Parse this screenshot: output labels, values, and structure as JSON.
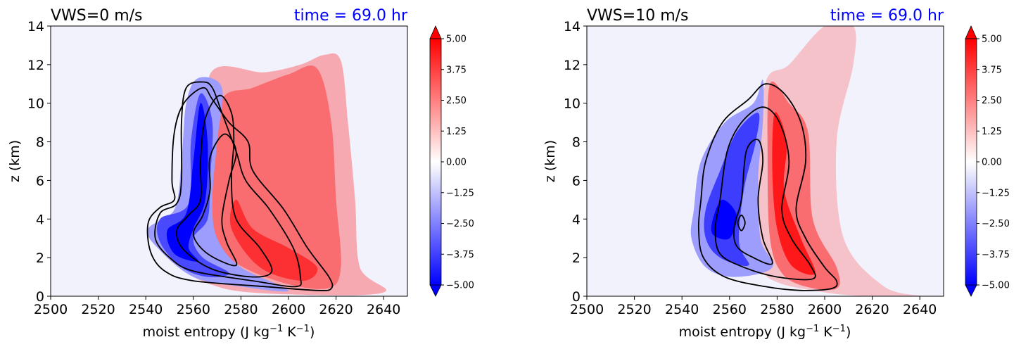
{
  "colors": {
    "background_field": "#f2f2fc",
    "positive": "#ff0000",
    "negative": "#0000ff",
    "contour": "#000000",
    "time_text": "#0000ff"
  },
  "chart_data": [
    {
      "type": "heatmap",
      "title_left": "VWS=0 m/s",
      "title_right": "time = 69.0 hr",
      "xlabel": "moist entropy (J kg",
      "xlabel_exp1": "−1",
      "xlabel_mid": " K",
      "xlabel_exp2": "−1",
      "xlabel_end": ")",
      "ylabel": "z (km)",
      "xlim": [
        2500,
        2650
      ],
      "ylim": [
        0,
        14
      ],
      "xticks": [
        "2500",
        "2520",
        "2540",
        "2560",
        "2580",
        "2600",
        "2620",
        "2640"
      ],
      "yticks": [
        "0",
        "2",
        "4",
        "6",
        "8",
        "10",
        "12",
        "14"
      ],
      "colorbar": {
        "min": -5.0,
        "max": 5.0,
        "extend": "both",
        "ticks": [
          "5.00",
          "3.75",
          "2.50",
          "1.25",
          "0.00",
          "−1.25",
          "−2.50",
          "−3.75",
          "−5.00"
        ]
      },
      "blobs": [
        {
          "sign": "pos",
          "level": 0.3,
          "points": [
            [
              2567,
              11.5
            ],
            [
              2590,
              11.6
            ],
            [
              2605,
              12.0
            ],
            [
              2615,
              12.5
            ],
            [
              2622,
              12.2
            ],
            [
              2625,
              9
            ],
            [
              2628,
              5
            ],
            [
              2630,
              1.5
            ],
            [
              2640,
              0.2
            ],
            [
              2600,
              0.1
            ],
            [
              2570,
              0.5
            ],
            [
              2555,
              2
            ],
            [
              2568,
              6
            ]
          ]
        },
        {
          "sign": "pos",
          "level": 0.55,
          "points": [
            [
              2572,
              10.2
            ],
            [
              2585,
              10.8
            ],
            [
              2600,
              11.5
            ],
            [
              2612,
              11.8
            ],
            [
              2618,
              9
            ],
            [
              2620,
              5
            ],
            [
              2622,
              1.5
            ],
            [
              2616,
              0.4
            ],
            [
              2595,
              0.8
            ],
            [
              2575,
              2
            ],
            [
              2566,
              4
            ],
            [
              2568,
              7
            ]
          ]
        },
        {
          "sign": "pos",
          "level": 0.8,
          "points": [
            [
              2576,
              3.5
            ],
            [
              2588,
              1.5
            ],
            [
              2606,
              0.8
            ],
            [
              2612,
              1.5
            ],
            [
              2600,
              2.5
            ],
            [
              2585,
              3.5
            ],
            [
              2578,
              5
            ]
          ]
        },
        {
          "sign": "neg",
          "level": 0.35,
          "points": [
            [
              2562,
              11.3
            ],
            [
              2572,
              10.8
            ],
            [
              2570,
              8
            ],
            [
              2568,
              5
            ],
            [
              2570,
              3
            ],
            [
              2580,
              1.5
            ],
            [
              2600,
              0.3
            ],
            [
              2580,
              0.5
            ],
            [
              2560,
              1.0
            ],
            [
              2545,
              2.5
            ],
            [
              2541,
              3.5
            ],
            [
              2552,
              4.5
            ],
            [
              2555,
              7
            ],
            [
              2557,
              10
            ]
          ]
        },
        {
          "sign": "neg",
          "level": 0.7,
          "points": [
            [
              2563,
              10.5
            ],
            [
              2568,
              9
            ],
            [
              2567,
              6
            ],
            [
              2566,
              4
            ],
            [
              2560,
              3
            ],
            [
              2564,
              2
            ],
            [
              2575,
              1.2
            ],
            [
              2566,
              1.0
            ],
            [
              2555,
              1.5
            ],
            [
              2546,
              2.8
            ],
            [
              2546,
              4
            ],
            [
              2558,
              4.8
            ],
            [
              2559,
              8
            ]
          ]
        },
        {
          "sign": "neg",
          "level": 1.0,
          "points": [
            [
              2563,
              10.0
            ],
            [
              2566,
              8
            ],
            [
              2565,
              5
            ],
            [
              2560,
              3.5
            ],
            [
              2558,
              2.5
            ],
            [
              2562,
              1.8
            ],
            [
              2552,
              2.2
            ],
            [
              2549,
              3.4
            ],
            [
              2557,
              4.3
            ],
            [
              2560,
              7
            ]
          ]
        }
      ],
      "contours": [
        [
          [
            2564,
            10.8
          ],
          [
            2556,
            10.0
          ],
          [
            2552,
            8.5
          ],
          [
            2551,
            6.0
          ],
          [
            2552,
            5.0
          ],
          [
            2546,
            4.6
          ],
          [
            2541,
            3.8
          ],
          [
            2542,
            2.3
          ],
          [
            2548,
            1.3
          ],
          [
            2560,
            0.8
          ],
          [
            2590,
            0.5
          ],
          [
            2612,
            0.3
          ],
          [
            2618,
            0.4
          ],
          [
            2617,
            1.0
          ],
          [
            2608,
            2.5
          ],
          [
            2598,
            4.5
          ],
          [
            2585,
            6.5
          ],
          [
            2583,
            8.0
          ],
          [
            2575,
            9.0
          ],
          [
            2568,
            10.2
          ]
        ],
        [
          [
            2564,
            11.1
          ],
          [
            2557,
            10.8
          ],
          [
            2555,
            9.0
          ],
          [
            2555,
            6.0
          ],
          [
            2553,
            4.8
          ],
          [
            2546,
            4.3
          ],
          [
            2544,
            3.0
          ],
          [
            2550,
            2.0
          ],
          [
            2560,
            1.3
          ],
          [
            2585,
            0.8
          ],
          [
            2603,
            0.5
          ],
          [
            2605,
            1.0
          ],
          [
            2602,
            2.5
          ],
          [
            2592,
            4.5
          ],
          [
            2582,
            6.0
          ],
          [
            2578,
            7.5
          ],
          [
            2572,
            9.5
          ],
          [
            2568,
            10.8
          ]
        ],
        [
          [
            2571,
            10.4
          ],
          [
            2565,
            9.2
          ],
          [
            2563,
            7.0
          ],
          [
            2563,
            5.0
          ],
          [
            2558,
            4.2
          ],
          [
            2553,
            3.4
          ],
          [
            2556,
            2.4
          ],
          [
            2568,
            1.4
          ],
          [
            2585,
            1.0
          ],
          [
            2593,
            1.3
          ],
          [
            2588,
            2.5
          ],
          [
            2578,
            4.0
          ],
          [
            2576,
            6.0
          ],
          [
            2577,
            8.0
          ],
          [
            2576,
            9.5
          ]
        ],
        [
          [
            2573,
            8.4
          ],
          [
            2567,
            7.2
          ],
          [
            2567,
            5.5
          ],
          [
            2564,
            4.2
          ],
          [
            2560,
            3.2
          ],
          [
            2566,
            2.2
          ],
          [
            2578,
            1.6
          ],
          [
            2574,
            2.8
          ],
          [
            2572,
            4.0
          ],
          [
            2575,
            6.0
          ],
          [
            2578,
            7.5
          ]
        ]
      ]
    },
    {
      "type": "heatmap",
      "title_left": "VWS=10 m/s",
      "title_right": "time = 69.0 hr",
      "xlabel": "moist entropy (J kg",
      "xlabel_exp1": "−1",
      "xlabel_mid": " K",
      "xlabel_exp2": "−1",
      "xlabel_end": ")",
      "ylabel": "z (km)",
      "xlim": [
        2500,
        2650
      ],
      "ylim": [
        0,
        14
      ],
      "xticks": [
        "2500",
        "2520",
        "2540",
        "2560",
        "2580",
        "2600",
        "2620",
        "2640"
      ],
      "yticks": [
        "0",
        "2",
        "4",
        "6",
        "8",
        "10",
        "12",
        "14"
      ],
      "colorbar": {
        "min": -5.0,
        "max": 5.0,
        "extend": "both",
        "ticks": [
          "5.00",
          "3.75",
          "2.50",
          "1.25",
          "0.00",
          "−1.25",
          "−2.50",
          "−3.75",
          "−5.00"
        ]
      },
      "blobs": [
        {
          "sign": "pos",
          "level": 0.2,
          "points": [
            [
              2575,
              11.0
            ],
            [
              2585,
              12.0
            ],
            [
              2600,
              14.0
            ],
            [
              2612,
              14.0
            ],
            [
              2612,
              12.0
            ],
            [
              2605,
              8.0
            ],
            [
              2608,
              3.0
            ],
            [
              2625,
              0.5
            ],
            [
              2640,
              0.0
            ],
            [
              2600,
              0.2
            ],
            [
              2572,
              1.5
            ],
            [
              2572,
              6.0
            ]
          ]
        },
        {
          "sign": "pos",
          "level": 0.55,
          "points": [
            [
              2577,
              11.0
            ],
            [
              2585,
              10.0
            ],
            [
              2593,
              8.5
            ],
            [
              2595,
              4.0
            ],
            [
              2605,
              1.5
            ],
            [
              2605,
              0.4
            ],
            [
              2592,
              0.5
            ],
            [
              2582,
              1.2
            ],
            [
              2577,
              3.0
            ],
            [
              2576,
              7.0
            ]
          ]
        },
        {
          "sign": "pos",
          "level": 0.9,
          "points": [
            [
              2579,
              9.5
            ],
            [
              2584,
              8.0
            ],
            [
              2583,
              5.5
            ],
            [
              2590,
              3.0
            ],
            [
              2596,
              1.2
            ],
            [
              2586,
              1.6
            ],
            [
              2580,
              3.5
            ],
            [
              2578,
              6.5
            ]
          ]
        },
        {
          "sign": "neg",
          "level": 0.35,
          "points": [
            [
              2574,
              11.2
            ],
            [
              2570,
              10.0
            ],
            [
              2558,
              9.0
            ],
            [
              2548,
              7.0
            ],
            [
              2545,
              4.5
            ],
            [
              2544,
              3.0
            ],
            [
              2550,
              1.5
            ],
            [
              2562,
              1.0
            ],
            [
              2578,
              1.5
            ],
            [
              2573,
              3.0
            ],
            [
              2572,
              6.0
            ],
            [
              2574,
              9.0
            ]
          ]
        },
        {
          "sign": "neg",
          "level": 0.75,
          "points": [
            [
              2572,
              9.5
            ],
            [
              2563,
              8.5
            ],
            [
              2556,
              6.5
            ],
            [
              2550,
              4.5
            ],
            [
              2550,
              3.0
            ],
            [
              2556,
              2.0
            ],
            [
              2568,
              1.6
            ],
            [
              2564,
              2.8
            ],
            [
              2566,
              5.5
            ],
            [
              2571,
              8.0
            ]
          ]
        },
        {
          "sign": "neg",
          "level": 1.0,
          "points": [
            [
              2557,
              5.0
            ],
            [
              2553,
              4.0
            ],
            [
              2553,
              3.2
            ],
            [
              2560,
              3.0
            ],
            [
              2563,
              4.2
            ]
          ]
        }
      ],
      "contours": [
        [
          [
            2575,
            11.0
          ],
          [
            2568,
            10.2
          ],
          [
            2557,
            9.0
          ],
          [
            2550,
            7.0
          ],
          [
            2548,
            5.0
          ],
          [
            2547,
            3.5
          ],
          [
            2549,
            2.0
          ],
          [
            2558,
            1.0
          ],
          [
            2575,
            0.5
          ],
          [
            2590,
            0.3
          ],
          [
            2603,
            0.4
          ],
          [
            2605,
            0.8
          ],
          [
            2600,
            1.5
          ],
          [
            2592,
            3.0
          ],
          [
            2588,
            4.5
          ],
          [
            2592,
            7.0
          ],
          [
            2590,
            9.0
          ],
          [
            2583,
            10.5
          ]
        ],
        [
          [
            2574,
            9.8
          ],
          [
            2565,
            9.0
          ],
          [
            2559,
            7.5
          ],
          [
            2556,
            5.0
          ],
          [
            2554,
            3.5
          ],
          [
            2556,
            2.2
          ],
          [
            2566,
            1.5
          ],
          [
            2580,
            1.0
          ],
          [
            2595,
            0.9
          ],
          [
            2594,
            1.6
          ],
          [
            2586,
            3.0
          ],
          [
            2582,
            4.5
          ],
          [
            2585,
            7.0
          ],
          [
            2581,
            9.0
          ]
        ],
        [
          [
            2572,
            8.1
          ],
          [
            2567,
            7.5
          ],
          [
            2565,
            5.0
          ],
          [
            2562,
            3.6
          ],
          [
            2563,
            2.6
          ],
          [
            2570,
            2.0
          ],
          [
            2578,
            1.7
          ],
          [
            2574,
            3.0
          ],
          [
            2572,
            5.0
          ],
          [
            2574,
            7.0
          ]
        ],
        [
          [
            2565,
            4.2
          ],
          [
            2563.5,
            3.8
          ],
          [
            2565,
            3.4
          ],
          [
            2566.5,
            3.8
          ]
        ]
      ]
    }
  ]
}
